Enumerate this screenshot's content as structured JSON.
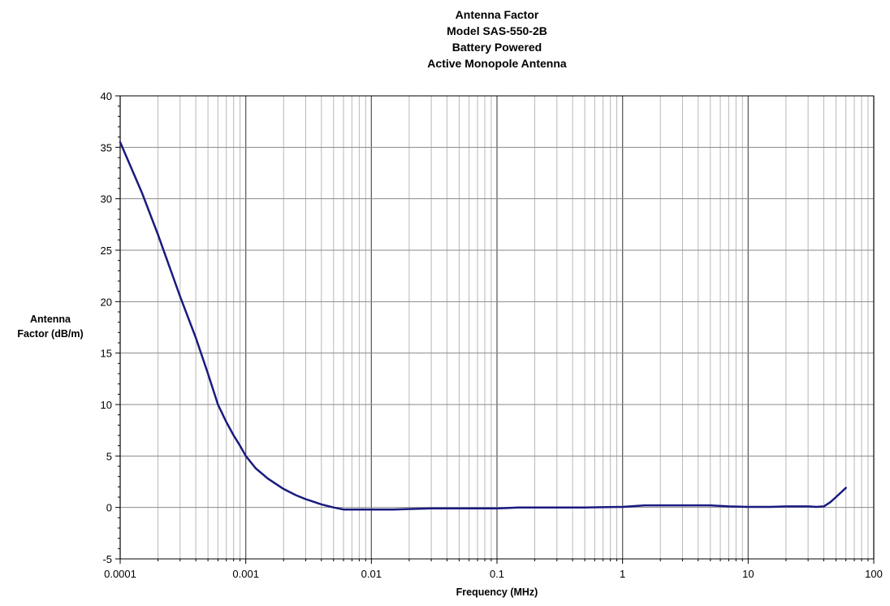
{
  "chart_data": {
    "type": "line",
    "title_lines": [
      "Antenna Factor",
      "Model SAS-550-2B",
      "Battery Powered",
      "Active Monopole Antenna"
    ],
    "xlabel": "Frequency (MHz)",
    "ylabel_lines": [
      "Antenna",
      "Factor (dB/m)"
    ],
    "x_scale": "log",
    "xlim": [
      0.0001,
      100
    ],
    "ylim": [
      -5,
      40
    ],
    "x_ticks": [
      0.0001,
      0.001,
      0.01,
      0.1,
      1,
      10,
      100
    ],
    "x_tick_labels": [
      "0.0001",
      "0.001",
      "0.01",
      "0.1",
      "1",
      "10",
      "100"
    ],
    "y_ticks": [
      -5,
      0,
      5,
      10,
      15,
      20,
      25,
      30,
      35,
      40
    ],
    "y_tick_labels": [
      "-5",
      "0",
      "5",
      "10",
      "15",
      "20",
      "25",
      "30",
      "35",
      "40"
    ],
    "grid": true,
    "line_color": "#1a1a80",
    "series": [
      {
        "x": [
          0.0001,
          0.00015,
          0.0002,
          0.0003,
          0.0004,
          0.0005,
          0.0006,
          0.0007,
          0.0008,
          0.0009,
          0.001,
          0.0012,
          0.0015,
          0.002,
          0.0025,
          0.003,
          0.004,
          0.005,
          0.006,
          0.008,
          0.01,
          0.015,
          0.02,
          0.03,
          0.05,
          0.1,
          0.15,
          0.2,
          0.3,
          0.5,
          1,
          1.5,
          2,
          3,
          5,
          7,
          10,
          15,
          20,
          30,
          35,
          40,
          45,
          50,
          60
        ],
        "y": [
          35.5,
          30.5,
          26.5,
          20.5,
          16.5,
          13.0,
          10.0,
          8.3,
          7.0,
          6.0,
          5.0,
          3.8,
          2.8,
          1.8,
          1.2,
          0.8,
          0.3,
          0.0,
          -0.2,
          -0.2,
          -0.2,
          -0.2,
          -0.15,
          -0.1,
          -0.1,
          -0.1,
          0.0,
          0.0,
          0.0,
          0.0,
          0.05,
          0.2,
          0.2,
          0.2,
          0.2,
          0.1,
          0.05,
          0.05,
          0.1,
          0.1,
          0.05,
          0.1,
          0.5,
          1.0,
          1.9
        ]
      }
    ]
  }
}
